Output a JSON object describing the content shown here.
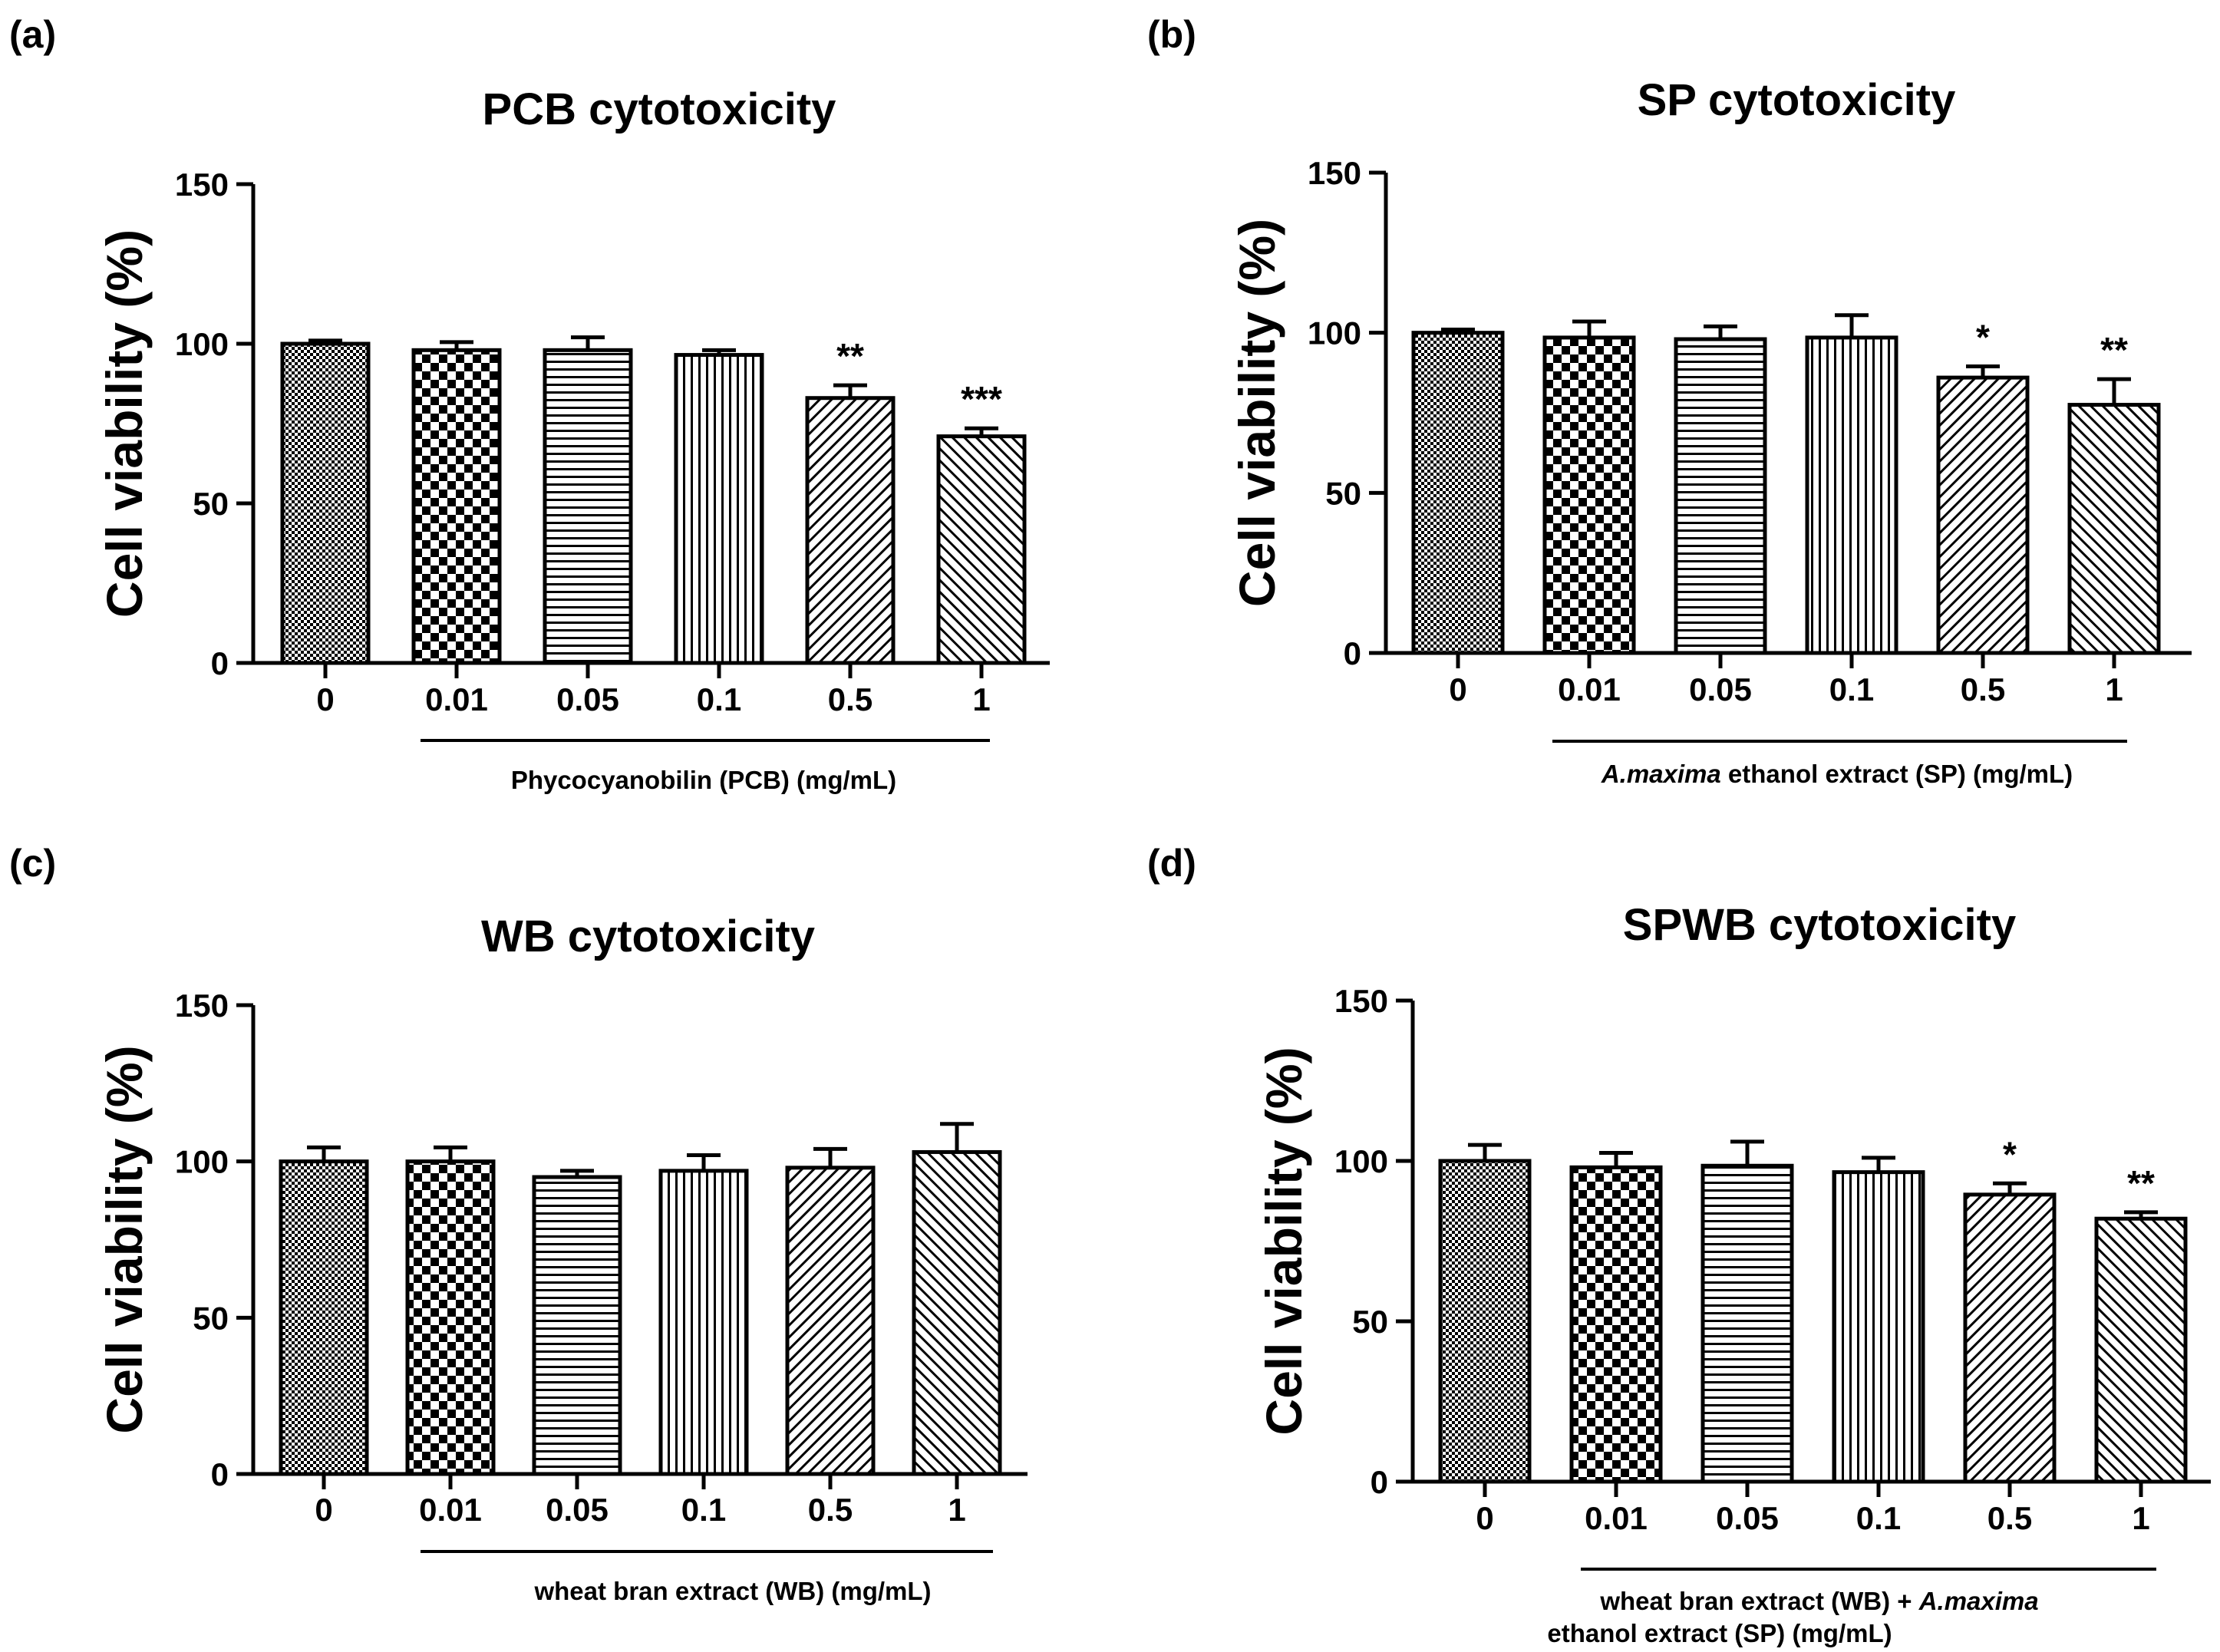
{
  "figure": {
    "panels": [
      {
        "label": "(a)",
        "chart_data": {
          "type": "bar",
          "title": "PCB cytotoxicity",
          "ylabel": "Cell viability  (%)",
          "ylim": [
            0,
            150
          ],
          "yticks": [
            "0",
            "50",
            "100",
            "150"
          ],
          "categories": [
            "0",
            "0.01",
            "0.05",
            "0.1",
            "0.5",
            "1"
          ],
          "values": [
            100,
            98,
            98,
            96.5,
            83,
            71
          ],
          "errors": [
            1,
            2.5,
            4,
            1.5,
            4,
            2.5
          ],
          "patterns": [
            "dense-check",
            "checker",
            "horizontal",
            "vertical",
            "diag-up",
            "diag-down"
          ],
          "significance": [
            "",
            "",
            "",
            "",
            "**",
            "***"
          ],
          "xlabel_lines": [
            [
              {
                "text": "Phycocyanobilin (PCB) (mg/mL)",
                "italic": false
              }
            ]
          ]
        }
      },
      {
        "label": "(b)",
        "chart_data": {
          "type": "bar",
          "title": "SP cytotoxicity",
          "ylabel": "Cell viability  (%)",
          "ylim": [
            0,
            150
          ],
          "yticks": [
            "0",
            "50",
            "100",
            "150"
          ],
          "categories": [
            "0",
            "0.01",
            "0.05",
            "0.1",
            "0.5",
            "1"
          ],
          "values": [
            100,
            98.5,
            98,
            98.5,
            86,
            77.5
          ],
          "errors": [
            1,
            5,
            4,
            7,
            3.5,
            8
          ],
          "patterns": [
            "dense-check",
            "checker",
            "horizontal",
            "vertical",
            "diag-up",
            "diag-down"
          ],
          "significance": [
            "",
            "",
            "",
            "",
            "*",
            "**"
          ],
          "xlabel_lines": [
            [
              {
                "text": "A.maxima",
                "italic": true
              },
              {
                "text": " ethanol extract  (SP) (mg/mL)",
                "italic": false
              }
            ]
          ]
        }
      },
      {
        "label": "(c)",
        "chart_data": {
          "type": "bar",
          "title": "WB cytotoxicity",
          "ylabel": "Cell viability  (%)",
          "ylim": [
            0,
            150
          ],
          "yticks": [
            "0",
            "50",
            "100",
            "150"
          ],
          "categories": [
            "0",
            "0.01",
            "0.05",
            "0.1",
            "0.5",
            "1"
          ],
          "values": [
            100,
            100,
            95,
            97,
            98,
            103
          ],
          "errors": [
            4.5,
            4.5,
            2,
            5,
            6,
            9
          ],
          "patterns": [
            "dense-check",
            "checker",
            "horizontal",
            "vertical",
            "diag-up",
            "diag-down"
          ],
          "significance": [
            "",
            "",
            "",
            "",
            "",
            ""
          ],
          "xlabel_lines": [
            [
              {
                "text": "wheat bran extract (WB) (mg/mL)",
                "italic": false
              }
            ]
          ]
        }
      },
      {
        "label": "(d)",
        "chart_data": {
          "type": "bar",
          "title": "SPWB cytotoxicity",
          "ylabel": "Cell viability  (%)",
          "ylim": [
            0,
            150
          ],
          "yticks": [
            "0",
            "50",
            "100",
            "150"
          ],
          "categories": [
            "0",
            "0.01",
            "0.05",
            "0.1",
            "0.5",
            "1"
          ],
          "values": [
            100,
            98,
            98.5,
            96.5,
            89.5,
            82
          ],
          "errors": [
            5,
            4.5,
            7.5,
            4.5,
            3.5,
            2
          ],
          "patterns": [
            "dense-check",
            "checker",
            "horizontal",
            "vertical",
            "diag-up",
            "diag-down"
          ],
          "significance": [
            "",
            "",
            "",
            "",
            "*",
            "**"
          ],
          "xlabel_lines": [
            [
              {
                "text": "wheat bran extract (WB) + ",
                "italic": false
              },
              {
                "text": "A.maxima",
                "italic": true
              }
            ],
            [
              {
                "text": "ethanol extract (SP) (mg/mL)",
                "italic": false
              }
            ]
          ]
        }
      }
    ]
  }
}
